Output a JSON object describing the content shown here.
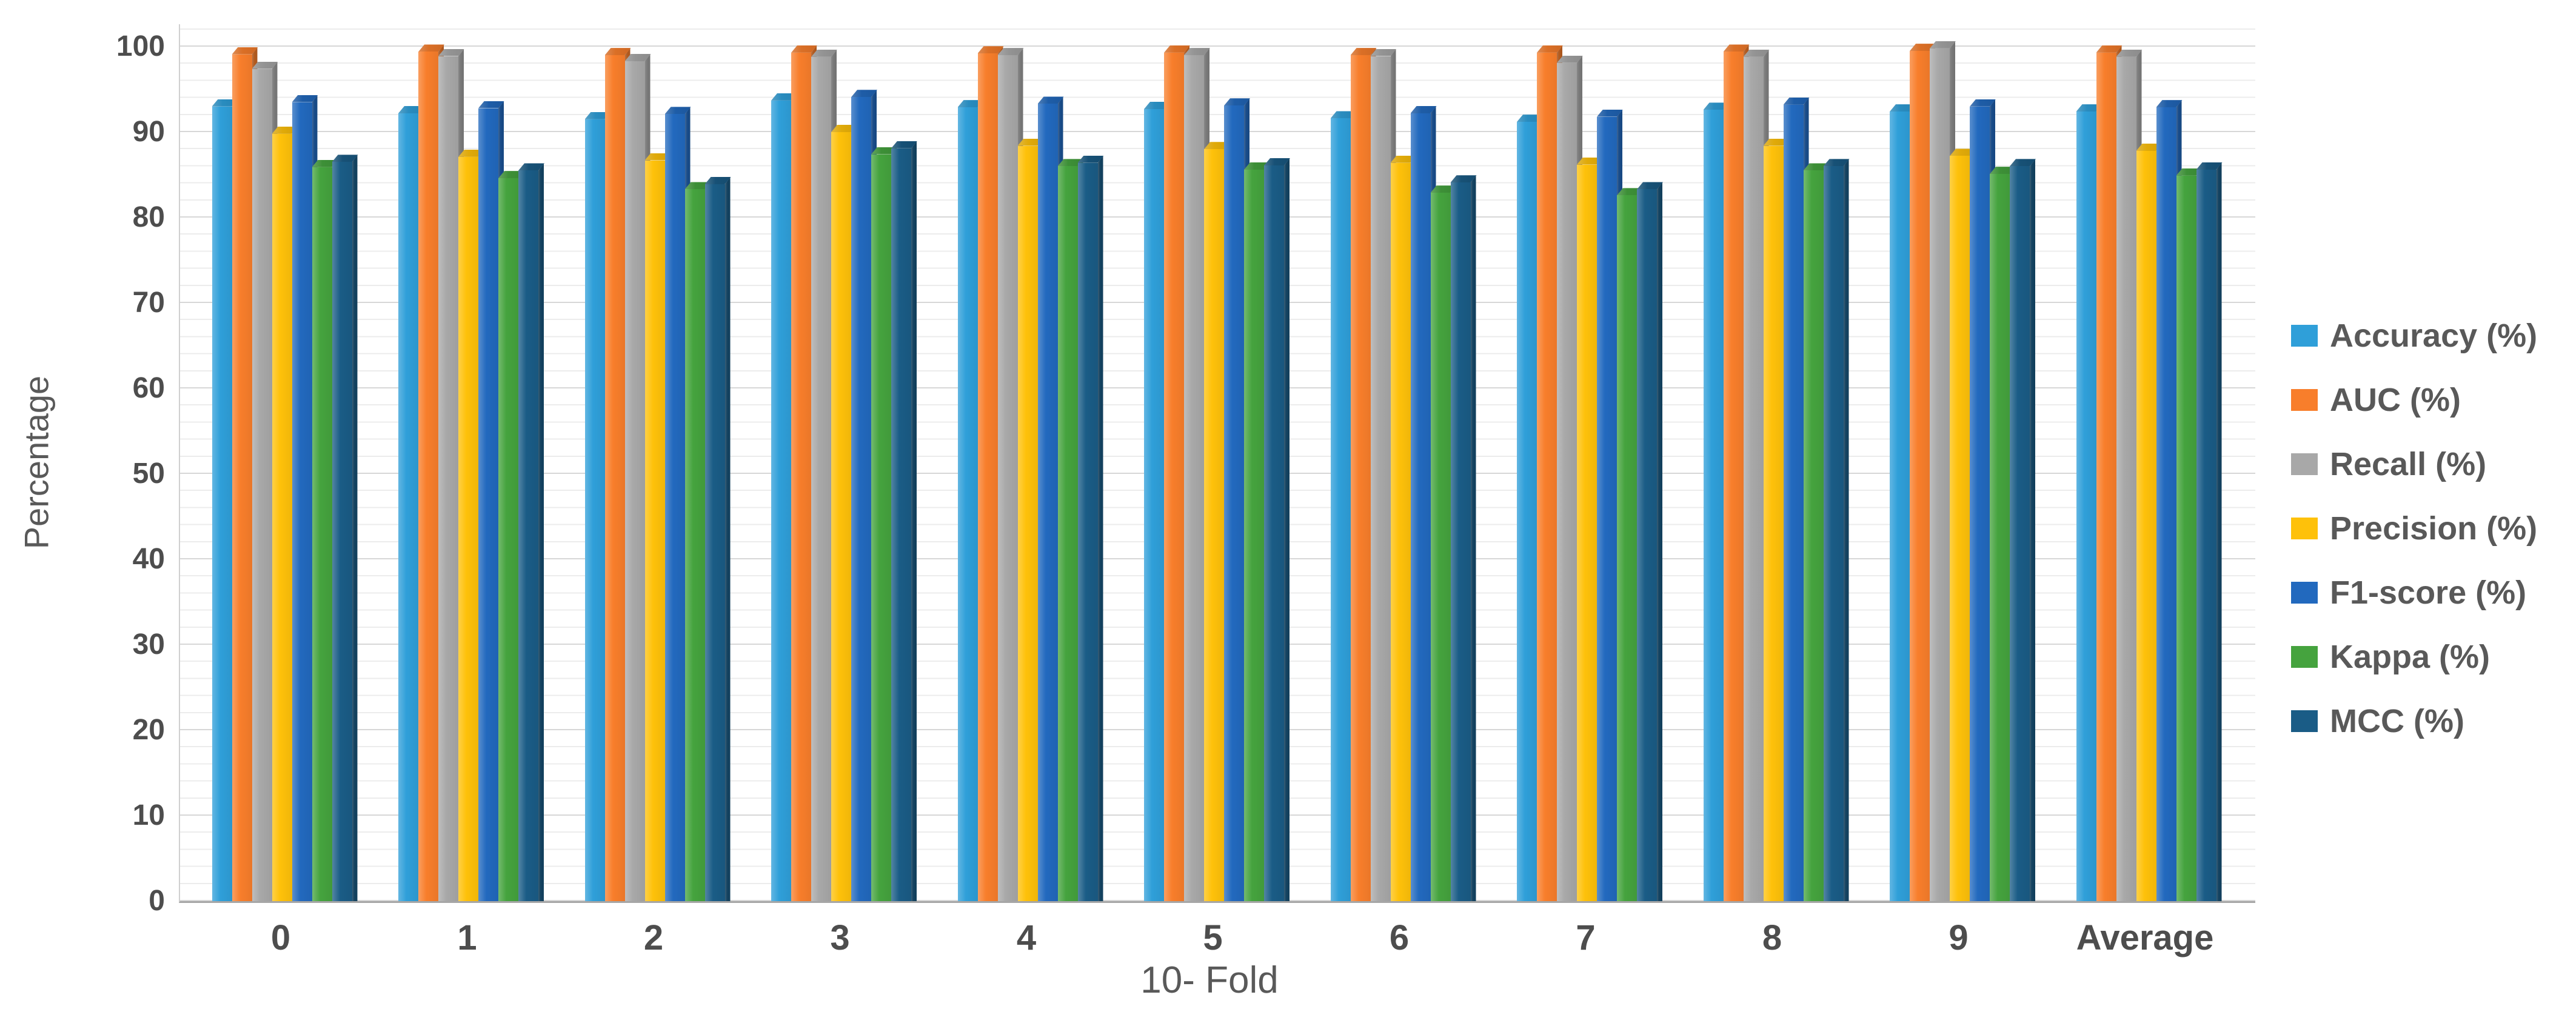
{
  "chart_data": {
    "type": "bar",
    "style": "3d-clustered-column",
    "title": "",
    "xlabel": "10- Fold",
    "ylabel": "Percentage",
    "categories": [
      "0",
      "1",
      "2",
      "3",
      "4",
      "5",
      "6",
      "7",
      "8",
      "9",
      "Average"
    ],
    "y_ticks": [
      0,
      10,
      20,
      30,
      40,
      50,
      60,
      70,
      80,
      90,
      100
    ],
    "ylim": [
      0,
      100
    ],
    "major_grid_step": 10,
    "minor_grid_step": 2,
    "grid": true,
    "legend_position": "right",
    "series": [
      {
        "name": "Accuracy (%)",
        "color": "#2f9fd9",
        "values": [
          93.0,
          92.2,
          91.5,
          93.7,
          92.9,
          92.7,
          91.6,
          91.2,
          92.6,
          92.4,
          92.4
        ]
      },
      {
        "name": "AUC (%)",
        "color": "#f87e2b",
        "values": [
          99.1,
          99.4,
          99.0,
          99.3,
          99.2,
          99.3,
          99.0,
          99.3,
          99.4,
          99.5,
          99.3
        ]
      },
      {
        "name": "Recall (%)",
        "color": "#a8a8a8",
        "values": [
          97.4,
          98.9,
          98.3,
          98.8,
          99.0,
          99.0,
          98.9,
          98.1,
          98.8,
          99.8,
          98.8
        ]
      },
      {
        "name": "Precision (%)",
        "color": "#fec10a",
        "values": [
          89.8,
          87.1,
          86.7,
          90.0,
          88.4,
          88.0,
          86.4,
          86.2,
          88.4,
          87.2,
          87.8
        ]
      },
      {
        "name": "F1-score (%)",
        "color": "#2269be",
        "values": [
          93.5,
          92.8,
          92.1,
          94.1,
          93.3,
          93.1,
          92.2,
          91.8,
          93.2,
          93.0,
          92.9
        ]
      },
      {
        "name": "Kappa (%)",
        "color": "#45a33e",
        "values": [
          85.9,
          84.6,
          83.3,
          87.4,
          86.0,
          85.6,
          82.9,
          82.6,
          85.5,
          85.1,
          84.9
        ]
      },
      {
        "name": "MCC (%)",
        "color": "#1a5c86",
        "values": [
          86.5,
          85.5,
          83.9,
          88.1,
          86.4,
          86.1,
          84.1,
          83.3,
          86.0,
          86.0,
          85.6
        ]
      }
    ],
    "colors": {
      "tick_text": "#4d4d4d",
      "axis_text": "#595959",
      "major_grid": "#d7d7d7",
      "minor_grid": "#ececec",
      "axis_line": "#a6a6a6"
    }
  }
}
